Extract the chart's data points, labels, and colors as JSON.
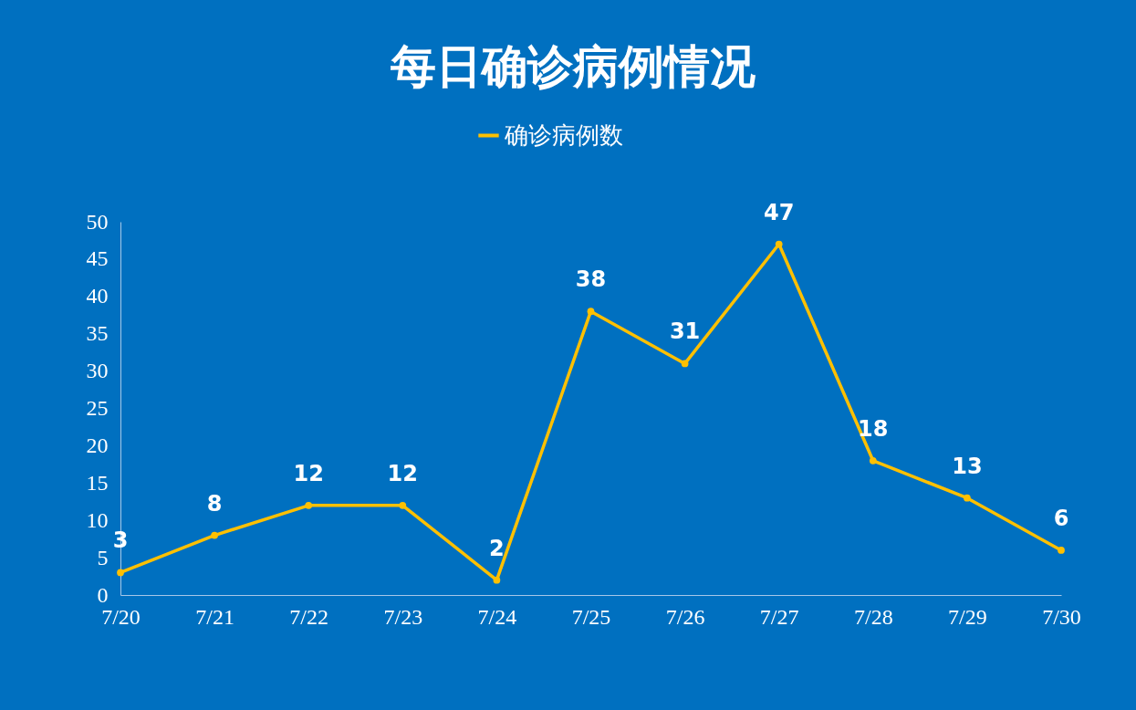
{
  "chart_data": {
    "type": "line",
    "title": "每日确诊病例情况",
    "categories": [
      "7/20",
      "7/21",
      "7/22",
      "7/23",
      "7/24",
      "7/25",
      "7/26",
      "7/27",
      "7/28",
      "7/29",
      "7/30"
    ],
    "series": [
      {
        "name": "确诊病例数",
        "color": "#ffc000",
        "values": [
          3,
          8,
          12,
          12,
          2,
          38,
          31,
          47,
          18,
          13,
          6
        ]
      }
    ],
    "ylim": [
      0,
      50
    ],
    "yticks": [
      0,
      5,
      10,
      15,
      20,
      25,
      30,
      35,
      40,
      45,
      50
    ],
    "data_labels": true,
    "legend": "top",
    "marker": "circle"
  }
}
